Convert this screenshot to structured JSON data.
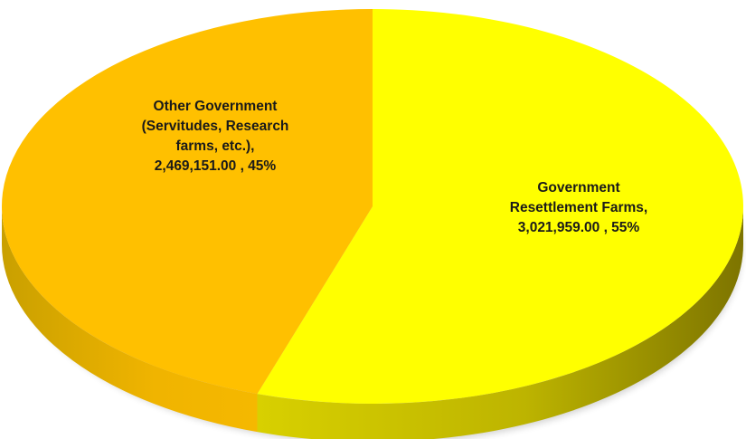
{
  "chart_data": {
    "type": "pie",
    "style": "3d",
    "title": "",
    "slices": [
      {
        "label": "Government Resettlement Farms",
        "value": 3021959.0,
        "percent": 55,
        "color": "#ffff00",
        "side_color": "#c9c100",
        "label_lines": [
          "Government",
          "Resettlement Farms,",
          "3,021,959.00 , 55%"
        ]
      },
      {
        "label": "Other Government (Servitudes, Research farms, etc.)",
        "value": 2469151.0,
        "percent": 45,
        "color": "#ffc000",
        "side_color": "#e5ad00",
        "label_lines": [
          "Other Government",
          "(Servitudes, Research",
          "farms, etc.),",
          "2,469,151.00 , 45%"
        ]
      }
    ],
    "legend": "none"
  }
}
